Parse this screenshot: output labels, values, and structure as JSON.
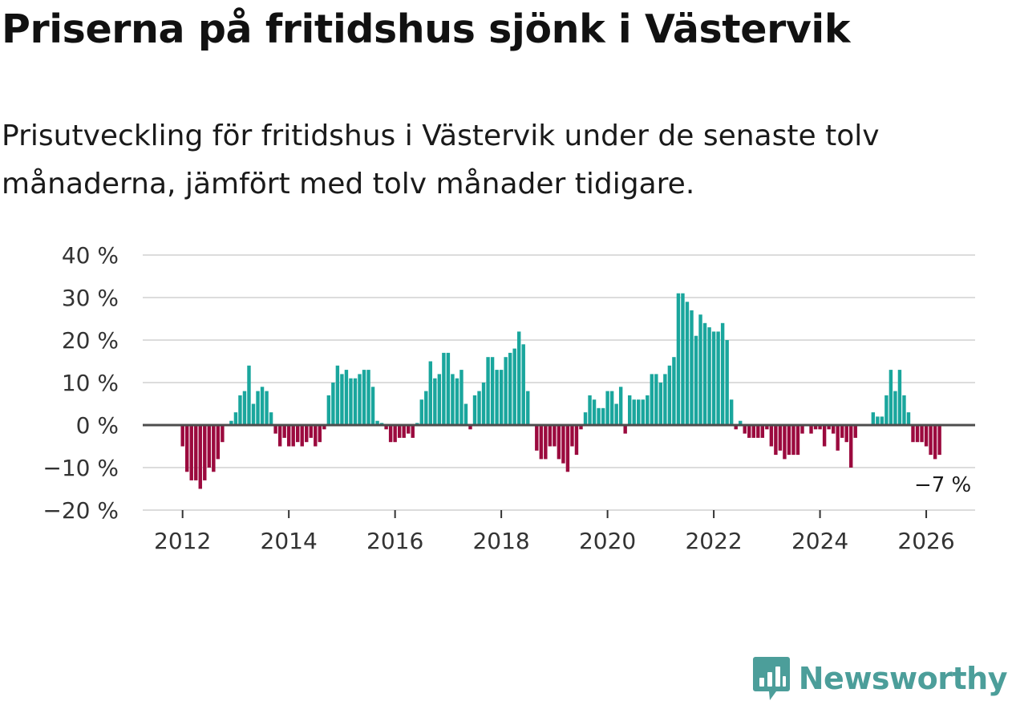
{
  "title": "Priserna på fritidshus sjönk i Västervik",
  "subtitle": "Prisutveckling för fritidshus i Västervik under de senaste tolv månaderna, jämfört med tolv månader tidigare.",
  "brand": {
    "name": "Newsworthy",
    "icon": "newsworthy-logo-icon",
    "color": "#4c9e9a"
  },
  "colors": {
    "positive": "#1aa69d",
    "negative": "#9b0a3e",
    "zero_line": "#4d4d4d",
    "grid": "#dcdcdc"
  },
  "chart_data": {
    "type": "bar",
    "title": "Priserna på fritidshus sjönk i Västervik",
    "xlabel": "",
    "ylabel": "",
    "ylim": [
      -20,
      40
    ],
    "xlim": [
      2011.25,
      2026.92
    ],
    "y_ticks": [
      {
        "value": 40,
        "label": "40 %"
      },
      {
        "value": 30,
        "label": "30 %"
      },
      {
        "value": 20,
        "label": "20 %"
      },
      {
        "value": 10,
        "label": "10 %"
      },
      {
        "value": 0,
        "label": "0 %"
      },
      {
        "value": -10,
        "label": "−10 %"
      },
      {
        "value": -20,
        "label": "−20 %"
      }
    ],
    "x_ticks": [
      {
        "value": 2012,
        "label": "2012"
      },
      {
        "value": 2014,
        "label": "2014"
      },
      {
        "value": 2016,
        "label": "2016"
      },
      {
        "value": 2018,
        "label": "2018"
      },
      {
        "value": 2020,
        "label": "2020"
      },
      {
        "value": 2022,
        "label": "2022"
      },
      {
        "value": 2024,
        "label": "2024"
      },
      {
        "value": 2026,
        "label": "2026"
      }
    ],
    "start": {
      "year": 2012,
      "month": 1
    },
    "unit": "percent change year over year",
    "values": [
      -5,
      -11,
      -13,
      -13,
      -15,
      -13,
      -10,
      -11,
      -8,
      -4,
      0,
      1,
      3,
      7,
      8,
      14,
      5,
      8,
      9,
      8,
      3,
      -2,
      -5,
      -3,
      -5,
      -5,
      -4,
      -5,
      -4,
      -3,
      -5,
      -4,
      -1,
      7,
      10,
      14,
      12,
      13,
      11,
      11,
      12,
      13,
      13,
      9,
      1,
      0.5,
      -1,
      -4,
      -4,
      -3,
      -3,
      -2,
      -3,
      0.5,
      6,
      8,
      15,
      11,
      12,
      17,
      17,
      12,
      11,
      13,
      5,
      -1,
      7,
      8,
      10,
      16,
      16,
      13,
      13,
      16,
      17,
      18,
      22,
      19,
      8,
      0,
      -6,
      -8,
      -8,
      -5,
      -5,
      -8,
      -9,
      -11,
      -5,
      -7,
      -1,
      3,
      7,
      6,
      4,
      4,
      8,
      8,
      5,
      9,
      -2,
      7,
      6,
      6,
      6,
      7,
      12,
      12,
      10,
      12,
      14,
      16,
      31,
      31,
      29,
      27,
      21,
      26,
      24,
      23,
      22,
      22,
      24,
      20,
      6,
      -1,
      1,
      -2,
      -3,
      -3,
      -3,
      -3,
      -1,
      -5,
      -7,
      -6,
      -8,
      -7,
      -7,
      -7,
      -2,
      0,
      -2,
      -1,
      -1,
      -5,
      -1,
      -2,
      -6,
      -3,
      -4,
      -10,
      -3,
      0,
      0,
      0,
      3,
      2,
      2,
      7,
      13,
      8,
      13,
      7,
      3,
      -4,
      -4,
      -4,
      -5,
      -7,
      -8,
      -7
    ],
    "last_label": "−7 %"
  }
}
